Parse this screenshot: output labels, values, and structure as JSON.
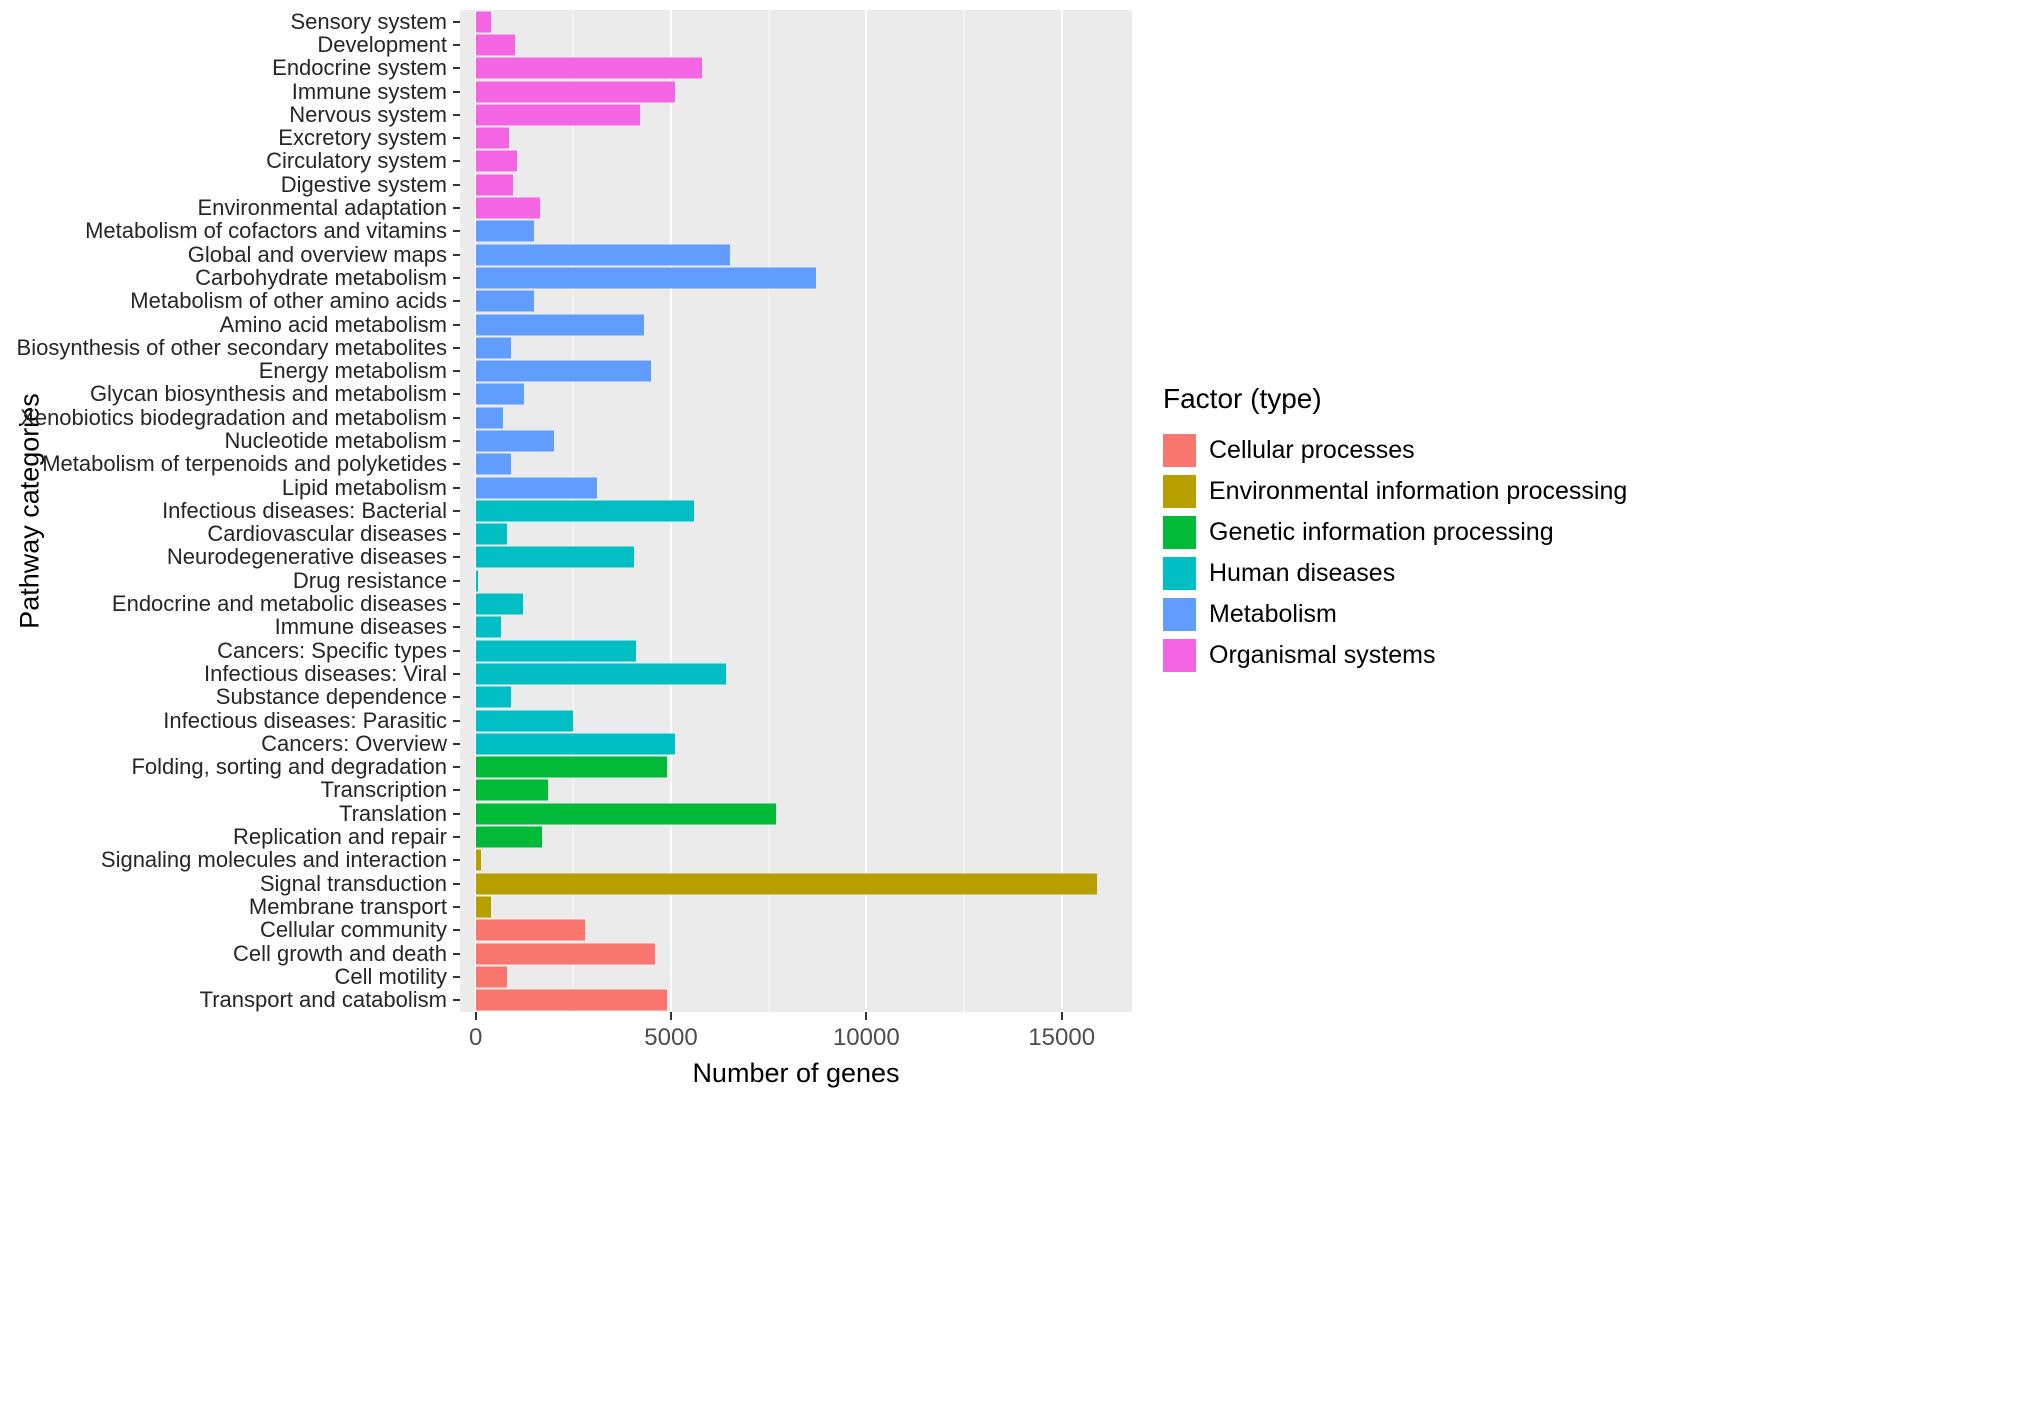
{
  "chart_data": {
    "type": "bar",
    "orientation": "horizontal",
    "title": "",
    "xlabel": "Number of genes",
    "ylabel": "Pathway categories",
    "legend_title": "Factor (type)",
    "legend_position": "right",
    "panel_background": "#EBEBEB",
    "grid": true,
    "x_domain": [
      -400,
      16800
    ],
    "x_ticks": [
      0,
      5000,
      10000,
      15000
    ],
    "x_minor_ticks": [
      2500,
      7500,
      12500
    ],
    "factors": [
      {
        "name": "Cellular processes",
        "color": "#F8766D"
      },
      {
        "name": "Environmental information processing",
        "color": "#B79F00"
      },
      {
        "name": "Genetic information processing",
        "color": "#00BA38"
      },
      {
        "name": "Human diseases",
        "color": "#00BFC4"
      },
      {
        "name": "Metabolism",
        "color": "#619CFF"
      },
      {
        "name": "Organismal systems",
        "color": "#F564E3"
      }
    ],
    "bars": [
      {
        "category": "Sensory system",
        "factor": "Organismal systems",
        "value": 400
      },
      {
        "category": "Development",
        "factor": "Organismal systems",
        "value": 1000
      },
      {
        "category": "Endocrine system",
        "factor": "Organismal systems",
        "value": 5800
      },
      {
        "category": "Immune system",
        "factor": "Organismal systems",
        "value": 5100
      },
      {
        "category": "Nervous system",
        "factor": "Organismal systems",
        "value": 4200
      },
      {
        "category": "Excretory system",
        "factor": "Organismal systems",
        "value": 850
      },
      {
        "category": "Circulatory system",
        "factor": "Organismal systems",
        "value": 1050
      },
      {
        "category": "Digestive system",
        "factor": "Organismal systems",
        "value": 950
      },
      {
        "category": "Environmental adaptation",
        "factor": "Organismal systems",
        "value": 1650
      },
      {
        "category": "Metabolism of cofactors and vitamins",
        "factor": "Metabolism",
        "value": 1500
      },
      {
        "category": "Global and overview maps",
        "factor": "Metabolism",
        "value": 6500
      },
      {
        "category": "Carbohydrate metabolism",
        "factor": "Metabolism",
        "value": 8700
      },
      {
        "category": "Metabolism of other amino acids",
        "factor": "Metabolism",
        "value": 1500
      },
      {
        "category": "Amino acid metabolism",
        "factor": "Metabolism",
        "value": 4300
      },
      {
        "category": "Biosynthesis of other secondary metabolites",
        "factor": "Metabolism",
        "value": 900
      },
      {
        "category": "Energy metabolism",
        "factor": "Metabolism",
        "value": 4500
      },
      {
        "category": "Glycan biosynthesis and metabolism",
        "factor": "Metabolism",
        "value": 1250
      },
      {
        "category": "Xenobiotics biodegradation and metabolism",
        "factor": "Metabolism",
        "value": 700
      },
      {
        "category": "Nucleotide metabolism",
        "factor": "Metabolism",
        "value": 2000
      },
      {
        "category": "Metabolism of terpenoids and polyketides",
        "factor": "Metabolism",
        "value": 900
      },
      {
        "category": "Lipid metabolism",
        "factor": "Metabolism",
        "value": 3100
      },
      {
        "category": "Infectious diseases: Bacterial",
        "factor": "Human diseases",
        "value": 5600
      },
      {
        "category": "Cardiovascular diseases",
        "factor": "Human diseases",
        "value": 800
      },
      {
        "category": "Neurodegenerative diseases",
        "factor": "Human diseases",
        "value": 4050
      },
      {
        "category": "Drug resistance",
        "factor": "Human diseases",
        "value": 60
      },
      {
        "category": "Endocrine and metabolic diseases",
        "factor": "Human diseases",
        "value": 1200
      },
      {
        "category": "Immune diseases",
        "factor": "Human diseases",
        "value": 650
      },
      {
        "category": "Cancers: Specific types",
        "factor": "Human diseases",
        "value": 4100
      },
      {
        "category": "Infectious diseases: Viral",
        "factor": "Human diseases",
        "value": 6400
      },
      {
        "category": "Substance dependence",
        "factor": "Human diseases",
        "value": 900
      },
      {
        "category": "Infectious diseases: Parasitic",
        "factor": "Human diseases",
        "value": 2500
      },
      {
        "category": "Cancers: Overview",
        "factor": "Human diseases",
        "value": 5100
      },
      {
        "category": "Folding, sorting and degradation",
        "factor": "Genetic information processing",
        "value": 4900
      },
      {
        "category": "Transcription",
        "factor": "Genetic information processing",
        "value": 1850
      },
      {
        "category": "Translation",
        "factor": "Genetic information processing",
        "value": 7700
      },
      {
        "category": "Replication and repair",
        "factor": "Genetic information processing",
        "value": 1700
      },
      {
        "category": "Signaling molecules and interaction",
        "factor": "Environmental information processing",
        "value": 150
      },
      {
        "category": "Signal transduction",
        "factor": "Environmental information processing",
        "value": 15900
      },
      {
        "category": "Membrane transport",
        "factor": "Environmental information processing",
        "value": 400
      },
      {
        "category": "Cellular community",
        "factor": "Cellular processes",
        "value": 2800
      },
      {
        "category": "Cell growth and death",
        "factor": "Cellular processes",
        "value": 4600
      },
      {
        "category": "Cell motility",
        "factor": "Cellular processes",
        "value": 800
      },
      {
        "category": "Transport and catabolism",
        "factor": "Cellular processes",
        "value": 4900
      }
    ]
  }
}
